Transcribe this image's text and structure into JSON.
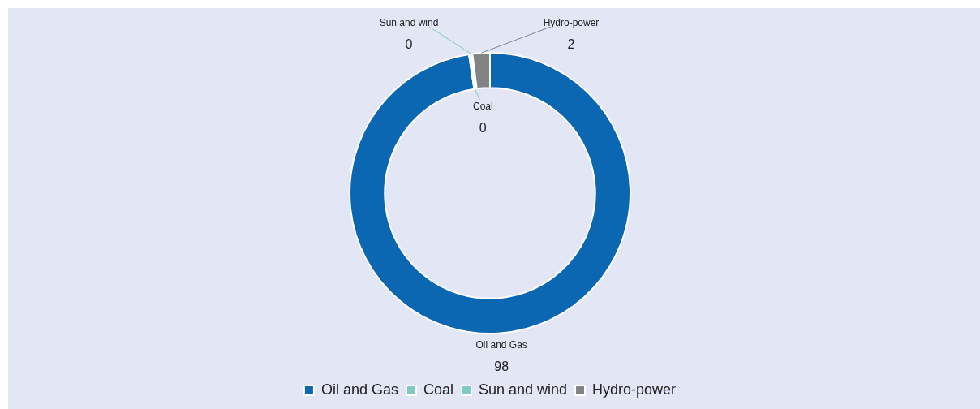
{
  "chart_data": {
    "type": "donut",
    "categories": [
      "Oil and Gas",
      "Coal",
      "Sun and wind",
      "Hydro-power"
    ],
    "values": [
      97.6,
      0.2,
      0.2,
      2.0
    ],
    "value_labels": [
      "98",
      "0",
      "0",
      "2"
    ],
    "colors": [
      "#0b67b2",
      "#7ecac3",
      "#7fcbc4",
      "#828384"
    ],
    "legend": "bottom"
  }
}
